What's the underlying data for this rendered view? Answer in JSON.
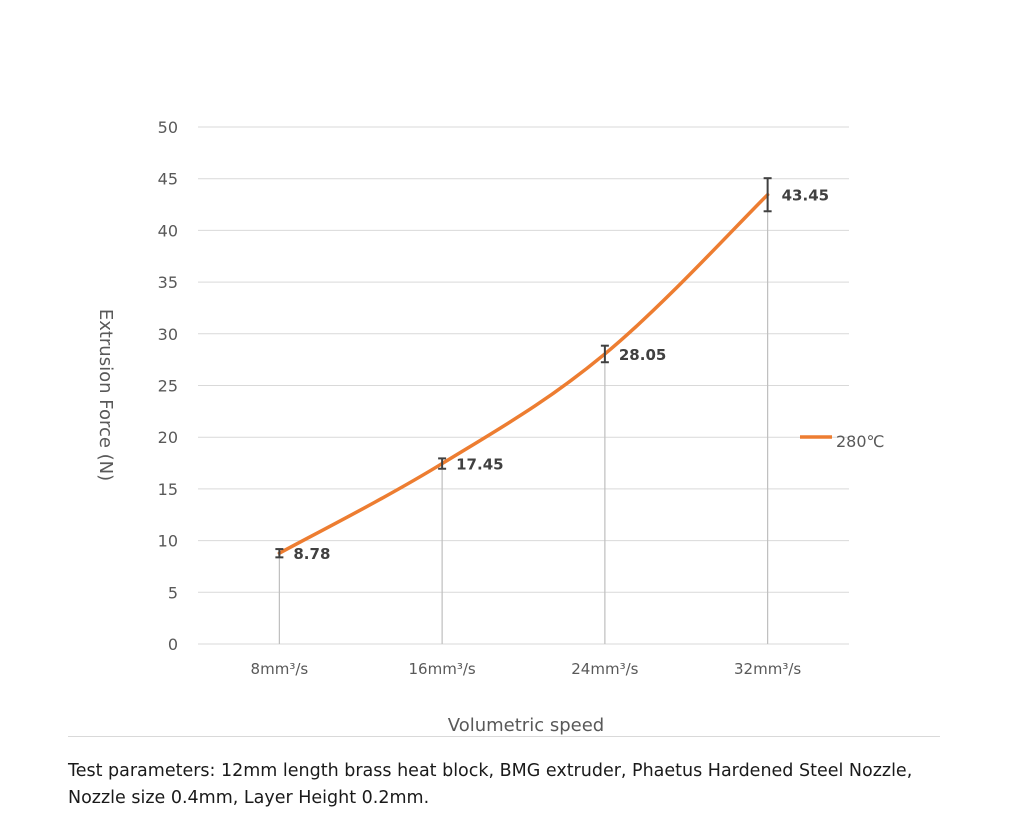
{
  "chart_data": {
    "type": "line",
    "categories": [
      "8mm³/s",
      "16mm³/s",
      "24mm³/s",
      "32mm³/s"
    ],
    "series": [
      {
        "name": "280℃",
        "values": [
          8.78,
          17.45,
          28.05,
          43.45
        ],
        "data_labels": [
          "8.78",
          "17.45",
          "28.05",
          "43.45"
        ],
        "error": [
          0.4,
          0.5,
          0.8,
          1.6
        ],
        "color": "#ED7D31"
      }
    ],
    "xlabel": "Volumetric speed",
    "ylabel": "Extrusion Force (N)",
    "ylim": [
      0,
      50
    ],
    "yticks": [
      "0",
      "5",
      "10",
      "15",
      "20",
      "25",
      "30",
      "35",
      "40",
      "45",
      "50"
    ],
    "drop_lines": true,
    "grid": true,
    "legend": "right",
    "colors": {
      "line": "#ED7D31",
      "grid": "#d9d9d9",
      "drop_line": "#bfbfbf",
      "error_bar": "#404040",
      "text": "#595959"
    }
  },
  "caption": "Test parameters: 12mm length brass heat block, BMG extruder, Phaetus Hardened Steel Nozzle, Nozzle size 0.4mm, Layer Height 0.2mm."
}
